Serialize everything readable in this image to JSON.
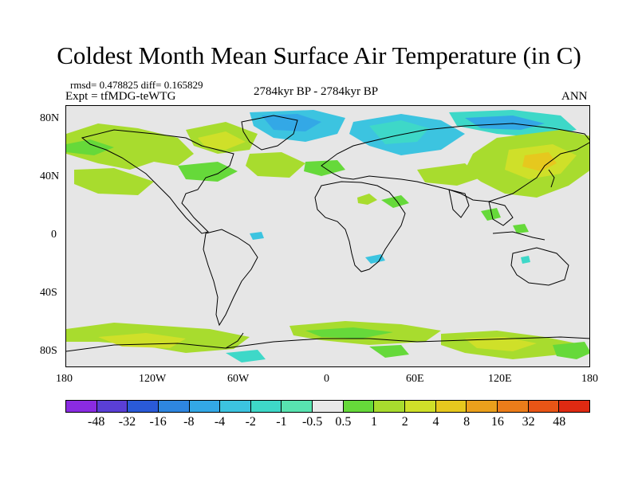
{
  "title": "Coldest Month Mean Surface Air Temperature (in C)",
  "stats_line": "rmsd= 0.478825 diff= 0.165829",
  "expt_line": "Expt = tfMDG-teWTG",
  "period": "2784kyr BP - 2784kyr BP",
  "season": "ANN",
  "lat_labels": [
    "80N",
    "40N",
    "0",
    "40S",
    "80S"
  ],
  "lon_labels": [
    "180",
    "120W",
    "60W",
    "0",
    "60E",
    "120E",
    "180"
  ],
  "colorbar": {
    "colors": [
      "#8a2be2",
      "#5a3fd6",
      "#2a5ad8",
      "#2e86e0",
      "#33a8e6",
      "#3cc4e0",
      "#3ed8c8",
      "#58e3b0",
      "#e8e8e8",
      "#66d93a",
      "#a8dc2e",
      "#cfe029",
      "#e6c81e",
      "#eba01c",
      "#ec7d1a",
      "#e85516",
      "#de2a12"
    ],
    "labels": [
      "-48",
      "-32",
      "-16",
      "-8",
      "-4",
      "-2",
      "-1",
      "-0.5",
      "0.5",
      "1",
      "2",
      "4",
      "8",
      "16",
      "32",
      "48"
    ]
  },
  "map_palette": {
    "background": "#e6e6e6",
    "light_green": "#a8dc2e",
    "green": "#66d93a",
    "yellow_green": "#cfe029",
    "cyan": "#3cc4e0",
    "teal": "#3ed8c8"
  }
}
